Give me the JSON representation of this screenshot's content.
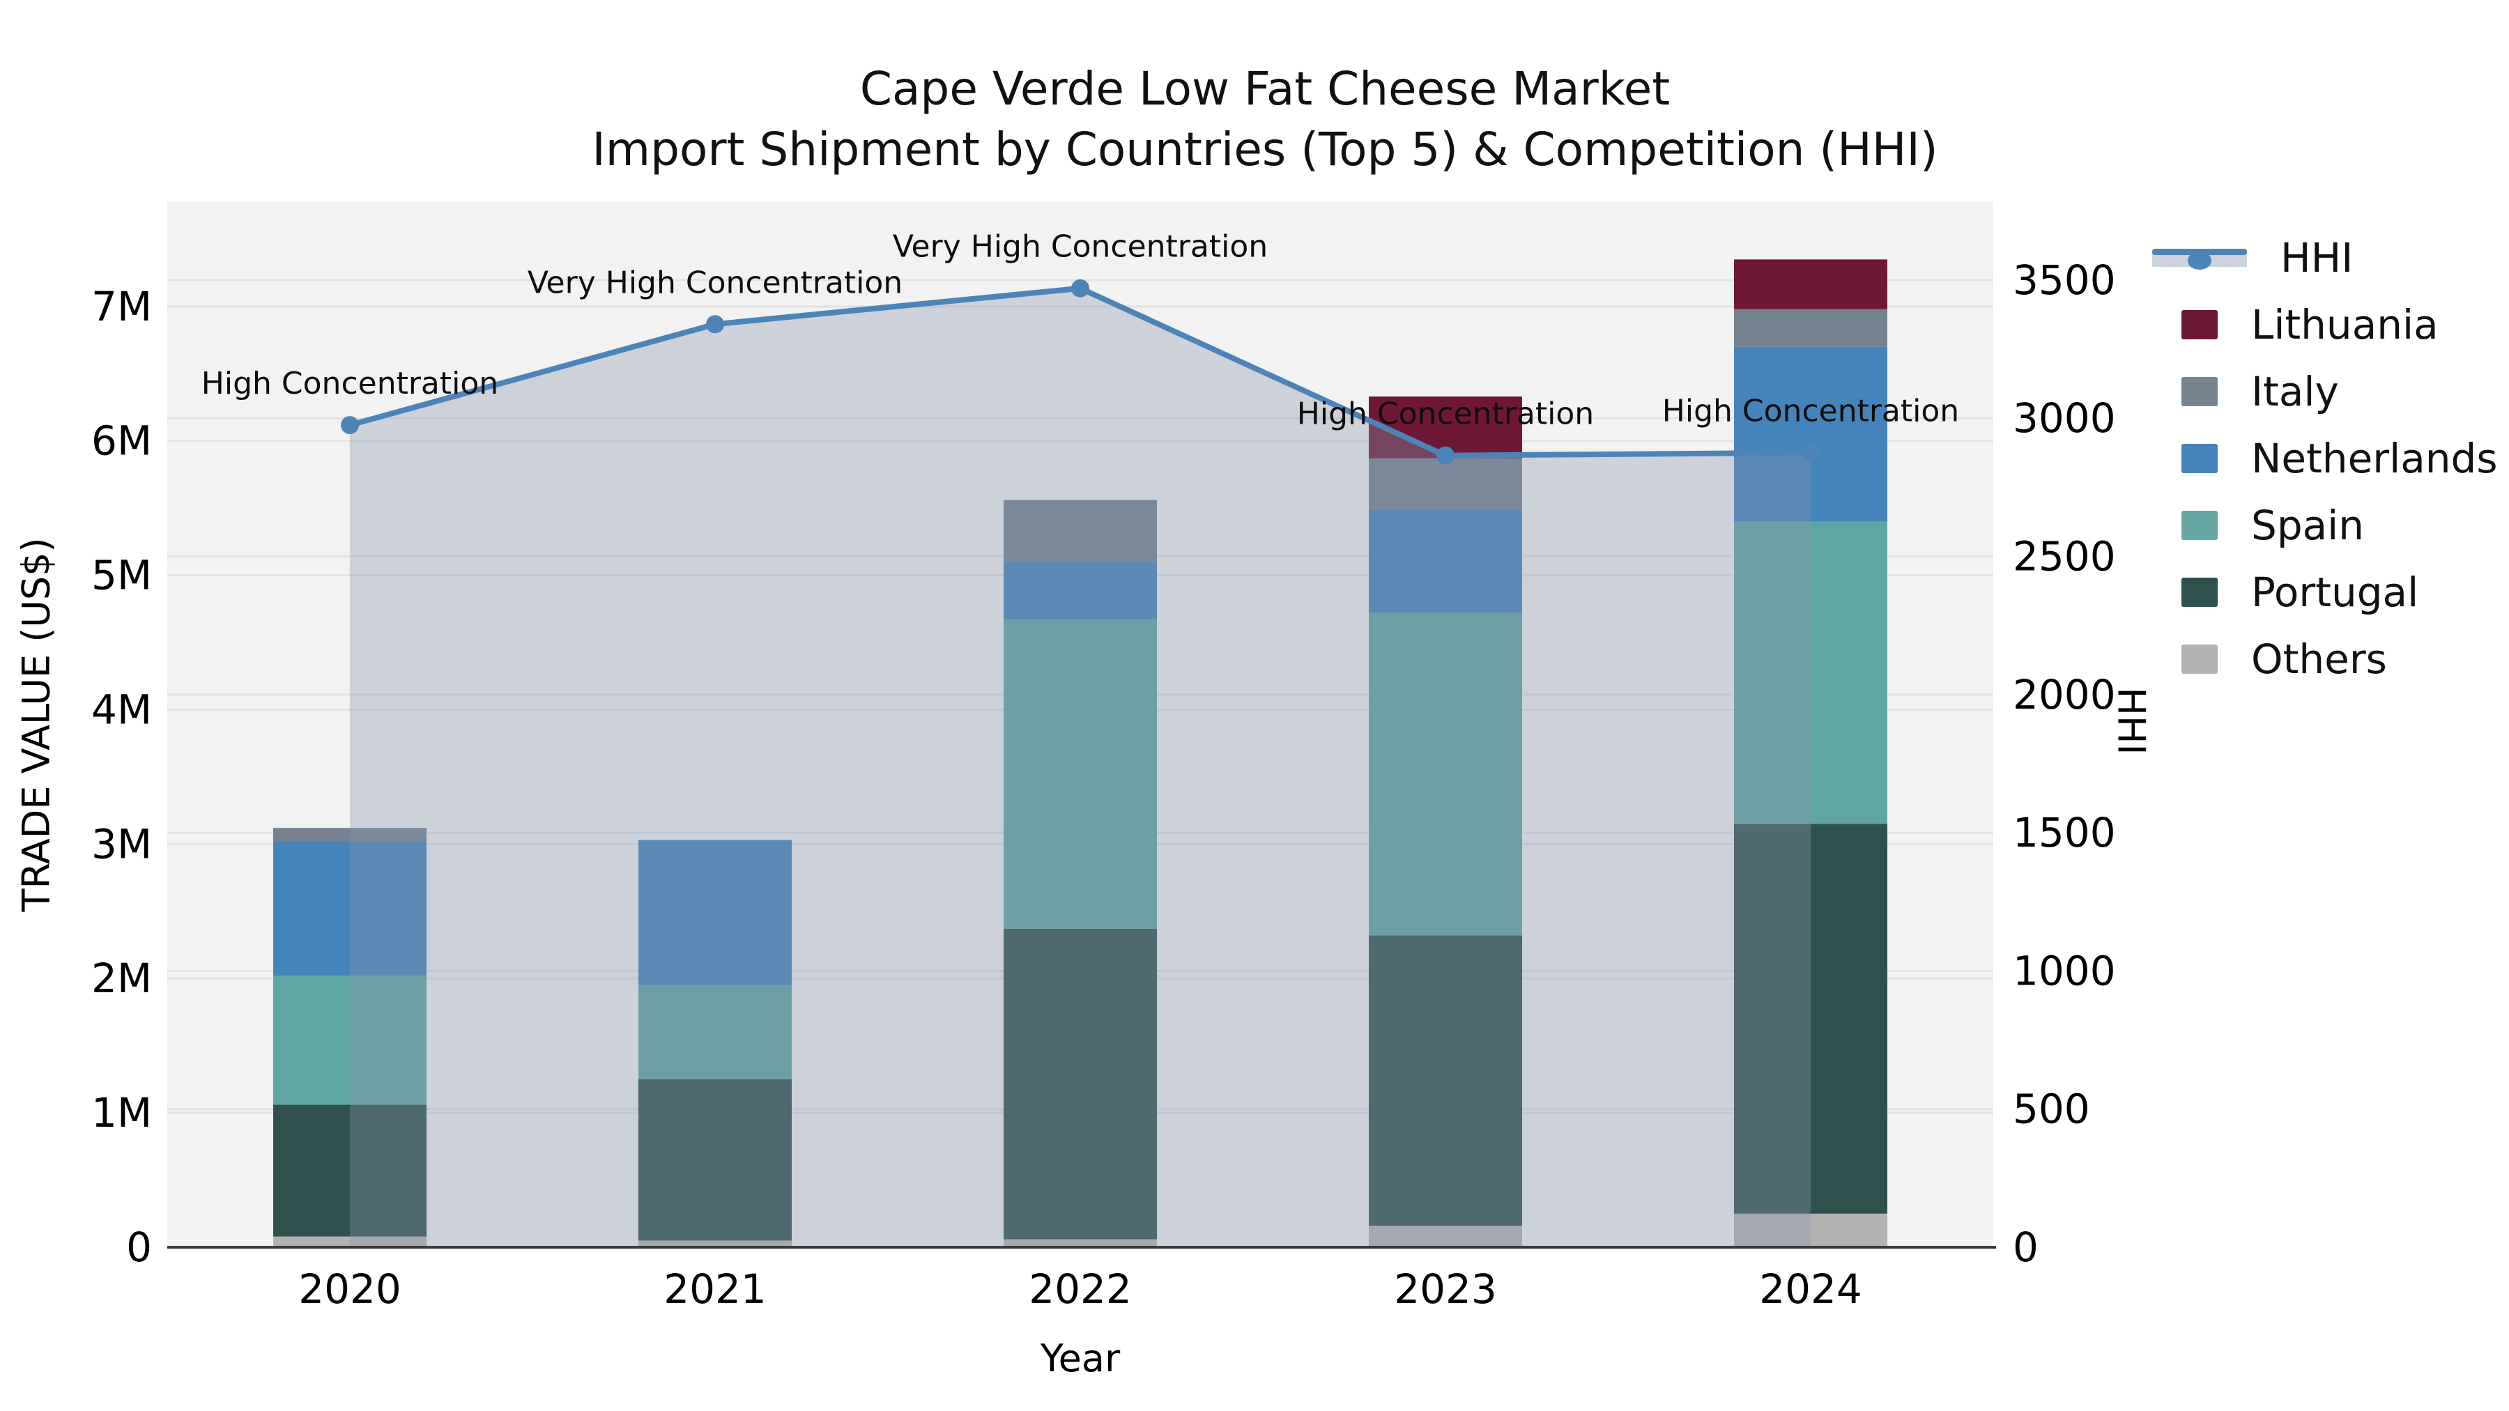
{
  "title": {
    "line1": "Cape Verde Low Fat Cheese Market",
    "line2": "Import Shipment by Countries (Top 5) & Competition (HHI)"
  },
  "axes": {
    "x": {
      "label": "Year",
      "categories": [
        "2020",
        "2021",
        "2022",
        "2023",
        "2024"
      ]
    },
    "y_left": {
      "label": "TRADE VALUE (US$)",
      "ticks": [
        {
          "value": 0,
          "label": "0"
        },
        {
          "value": 1000000,
          "label": "1M"
        },
        {
          "value": 2000000,
          "label": "2M"
        },
        {
          "value": 3000000,
          "label": "3M"
        },
        {
          "value": 4000000,
          "label": "4M"
        },
        {
          "value": 5000000,
          "label": "5M"
        },
        {
          "value": 6000000,
          "label": "6M"
        },
        {
          "value": 7000000,
          "label": "7M"
        }
      ],
      "max": 7777000
    },
    "y_right": {
      "label": "HHI",
      "ticks": [
        {
          "value": 0,
          "label": "0"
        },
        {
          "value": 500,
          "label": "500"
        },
        {
          "value": 1000,
          "label": "1000"
        },
        {
          "value": 1500,
          "label": "1500"
        },
        {
          "value": 2000,
          "label": "2000"
        },
        {
          "value": 2500,
          "label": "2500"
        },
        {
          "value": 3000,
          "label": "3000"
        },
        {
          "value": 3500,
          "label": "3500"
        }
      ],
      "max": 3782
    }
  },
  "legend": [
    {
      "label": "HHI",
      "type": "line",
      "color": "#4c84b8"
    },
    {
      "label": "Lithuania",
      "type": "patch",
      "color": "#6e1837"
    },
    {
      "label": "Italy",
      "type": "patch",
      "color": "#77838f"
    },
    {
      "label": "Netherlands",
      "type": "patch",
      "color": "#4583ba"
    },
    {
      "label": "Spain",
      "type": "patch",
      "color": "#67a8a4"
    },
    {
      "label": "Portugal",
      "type": "patch",
      "color": "#2f514e"
    },
    {
      "label": "Others",
      "type": "patch",
      "color": "#b2b2b2"
    }
  ],
  "chart_data": {
    "type": "combo-stacked-bar-line",
    "title": "Cape Verde Low Fat Cheese Market — Import Shipment by Countries (Top 5) & Competition (HHI)",
    "categories": [
      "2020",
      "2021",
      "2022",
      "2023",
      "2024"
    ],
    "bar_value_unit": "US$",
    "series": [
      {
        "name": "Others",
        "color": "#b2b2b2",
        "values": [
          80000,
          50000,
          60000,
          160000,
          250000
        ]
      },
      {
        "name": "Portugal",
        "color": "#2f514e",
        "values": [
          980000,
          1200000,
          2310000,
          2160000,
          2900000
        ]
      },
      {
        "name": "Spain",
        "color": "#5fa6a2",
        "values": [
          960000,
          700000,
          2300000,
          2400000,
          2250000
        ]
      },
      {
        "name": "Netherlands",
        "color": "#4484ba",
        "values": [
          1000000,
          1080000,
          430000,
          770000,
          1300000
        ]
      },
      {
        "name": "Italy",
        "color": "#76828f",
        "values": [
          100000,
          0,
          460000,
          380000,
          280000
        ]
      },
      {
        "name": "Lithuania",
        "color": "#6f1836",
        "values": [
          0,
          0,
          0,
          460000,
          370000
        ]
      }
    ],
    "bar_totals": [
      3120000,
      3030000,
      5560000,
      6330000,
      7350000
    ],
    "line": {
      "name": "HHI",
      "axis": "y_right",
      "color": "#4c84b8",
      "area_fill": "rgba(137,151,174,0.36)",
      "values": [
        2975,
        3340,
        3470,
        2865,
        2875
      ],
      "annotations": [
        "High Concentration",
        "Very High Concentration",
        "Very High Concentration",
        "High Concentration",
        "High Concentration"
      ]
    },
    "layout_hints": {
      "legend_position": "right-outside",
      "grid": "both-axes-horizontal",
      "plot_background": "#f2f2f3",
      "gridline_color": "#e3e3e6",
      "spine_color": "#3a3a3a",
      "annotation_color": "#0d0d0d"
    }
  }
}
